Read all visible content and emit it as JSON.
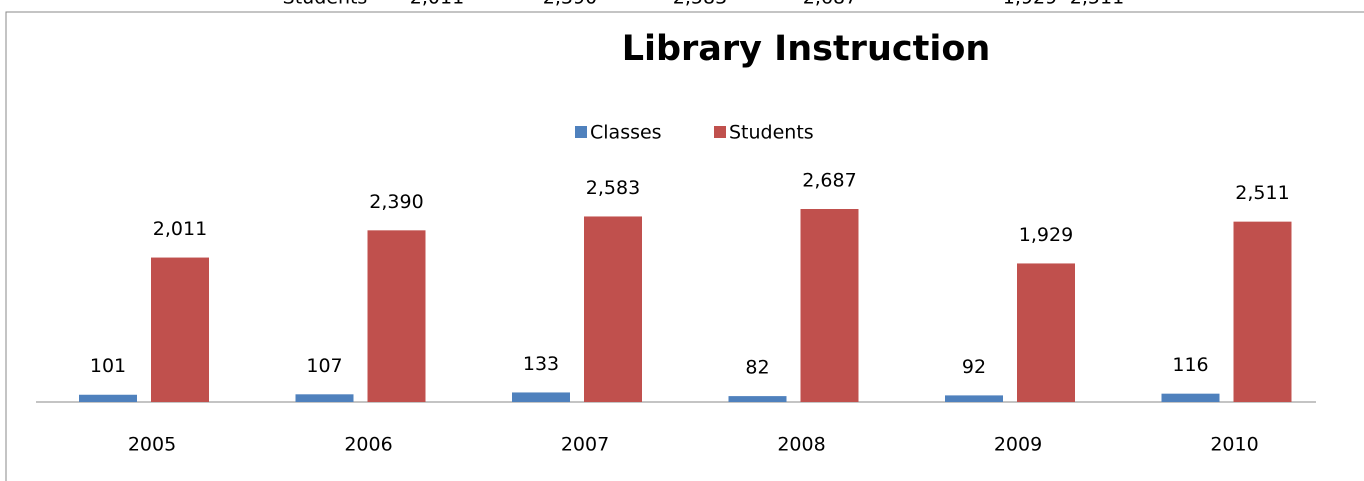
{
  "table_row_label": "Students",
  "chart_data": {
    "type": "bar",
    "title": "Library Instruction",
    "categories": [
      "2005",
      "2006",
      "2007",
      "2008",
      "2009",
      "2010"
    ],
    "series": [
      {
        "name": "Classes",
        "color": "#4f81bd",
        "values": [
          101,
          107,
          133,
          82,
          92,
          116
        ]
      },
      {
        "name": "Students",
        "color": "#c0504d",
        "values": [
          2011,
          2390,
          2583,
          2687,
          1929,
          2511
        ],
        "value_labels": [
          "2,011",
          "2,390",
          "2,583",
          "2,687",
          "1,929",
          "2,511"
        ]
      }
    ],
    "legend": "top"
  }
}
